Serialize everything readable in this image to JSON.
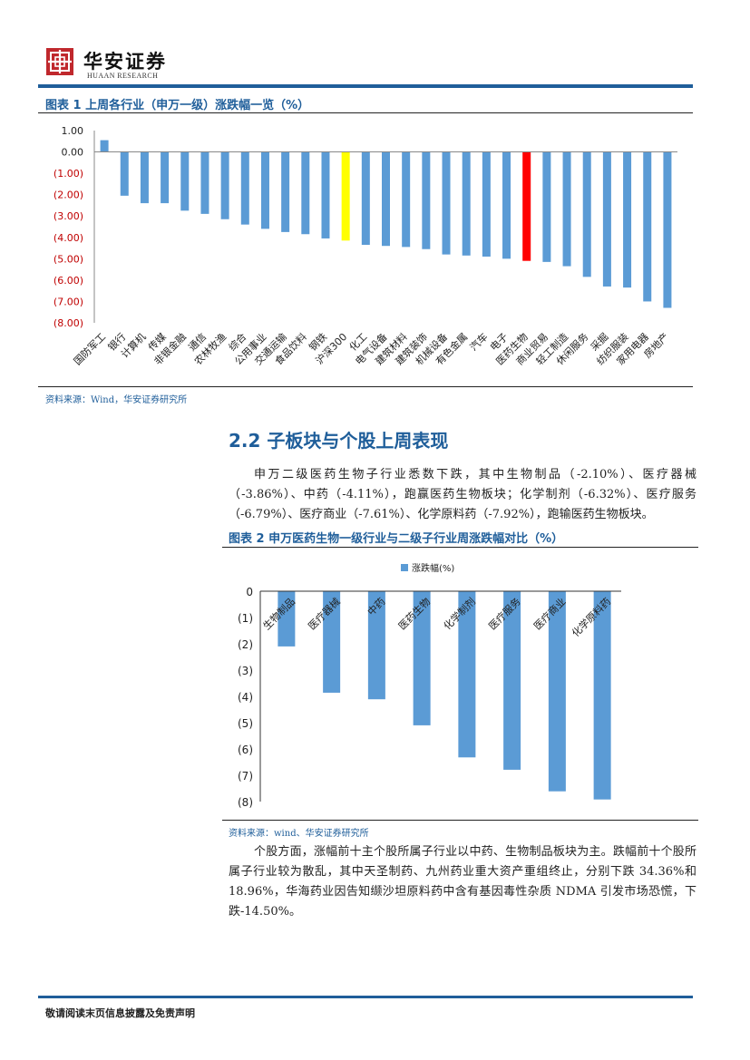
{
  "header": {
    "brand_cn": "华安证券",
    "brand_en": "HUAAN RESEARCH"
  },
  "colors": {
    "accent": "#1f5e9a",
    "bar": "#5b9bd5",
    "negative_label": "#c00000",
    "highlight_yellow": "#ffff00",
    "highlight_red": "#ff0000"
  },
  "figure1": {
    "title": "图表 1 上周各行业（申万一级）涨跌幅一览（%）",
    "source": "资料来源：Wind，华安证券研究所",
    "chart_data": {
      "type": "bar",
      "title": "",
      "ylim": [
        -8,
        1
      ],
      "yticks": [
        1,
        0,
        -1,
        -2,
        -3,
        -4,
        -5,
        -6,
        -7,
        -8
      ],
      "ytick_labels": [
        "1.00",
        "0.00",
        "(1.00)",
        "(2.00)",
        "(3.00)",
        "(4.00)",
        "(5.00)",
        "(6.00)",
        "(7.00)",
        "(8.00)"
      ],
      "categories": [
        "国防军工",
        "银行",
        "计算机",
        "传媒",
        "非银金融",
        "通信",
        "农林牧渔",
        "综合",
        "公用事业",
        "交通运输",
        "食品饮料",
        "钢铁",
        "沪深300",
        "化工",
        "电气设备",
        "建筑材料",
        "建筑装饰",
        "机械设备",
        "有色金属",
        "汽车",
        "电子",
        "医药生物",
        "商业贸易",
        "轻工制造",
        "休闲服务",
        "采掘",
        "纺织服装",
        "家用电器",
        "房地产"
      ],
      "values": [
        0.55,
        -2.05,
        -2.4,
        -2.4,
        -2.75,
        -2.9,
        -3.15,
        -3.4,
        -3.6,
        -3.75,
        -3.85,
        -4.05,
        -4.15,
        -4.35,
        -4.4,
        -4.45,
        -4.55,
        -4.8,
        -4.85,
        -4.9,
        -5.0,
        -5.1,
        -5.15,
        -5.35,
        -5.85,
        -6.3,
        -6.35,
        -7.0,
        -7.3
      ],
      "highlight": {
        "沪深300": "yellow",
        "医药生物": "red"
      }
    }
  },
  "section": {
    "title": "2.2 子板块与个股上周表现",
    "para1": "申万二级医药生物子行业悉数下跌，其中生物制品（-2.10%）、医疗器械（-3.86%）、中药（-4.11%），跑赢医药生物板块；化学制剂（-6.32%）、医疗服务（-6.79%）、医疗商业（-7.61%）、化学原料药（-7.92%），跑输医药生物板块。",
    "para2": "个股方面，涨幅前十主个股所属子行业以中药、生物制品板块为主。跌幅前十个股所属子行业较为散乱，其中天圣制药、九州药业重大资产重组终止，分别下跌 34.36%和 18.96%，华海药业因告知缬沙坦原料药中含有基因毒性杂质 NDMA 引发市场恐慌，下跌-14.50%。"
  },
  "figure2": {
    "title": "图表 2 申万医药生物一级行业与二级子行业周涨跌幅对比（%）",
    "source": "资料来源：wind、华安证券研究所",
    "chart_data": {
      "type": "bar",
      "title": "",
      "legend": "涨跌幅(%)",
      "legend_position": "top",
      "ylim": [
        -8,
        0
      ],
      "yticks": [
        0,
        -1,
        -2,
        -3,
        -4,
        -5,
        -6,
        -7,
        -8
      ],
      "ytick_labels": [
        "0",
        "(1)",
        "(2)",
        "(3)",
        "(4)",
        "(5)",
        "(6)",
        "(7)",
        "(8)"
      ],
      "categories": [
        "生物制品",
        "医疗器械",
        "中药",
        "医药生物",
        "化学制剂",
        "医疗服务",
        "医疗商业",
        "化学原料药"
      ],
      "values": [
        -2.1,
        -3.86,
        -4.11,
        -5.1,
        -6.32,
        -6.79,
        -7.61,
        -7.92
      ]
    }
  },
  "footer": {
    "disclaimer": "敬请阅读末页信息披露及免责声明"
  }
}
